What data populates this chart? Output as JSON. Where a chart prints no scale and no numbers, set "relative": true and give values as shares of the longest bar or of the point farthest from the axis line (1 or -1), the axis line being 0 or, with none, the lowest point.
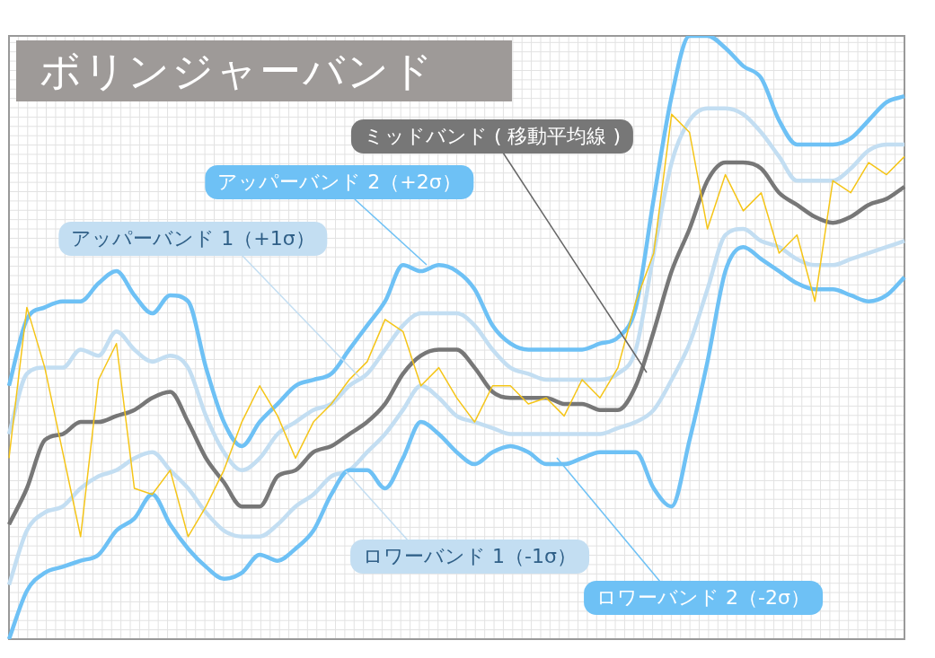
{
  "chart_data": {
    "type": "line",
    "title": "ボリンジャーバンド",
    "relative": true,
    "grid": true,
    "legend": false,
    "marker": "none",
    "categories": [
      null,
      null,
      null,
      null,
      null,
      null,
      null,
      null,
      null,
      null,
      null,
      null,
      null,
      null,
      null,
      null,
      null,
      null,
      null,
      null,
      null,
      null,
      null,
      null,
      null,
      null,
      null,
      null,
      null,
      null,
      null,
      null,
      null,
      null,
      null,
      null,
      null,
      null,
      null,
      null,
      null,
      null,
      null,
      null,
      null,
      null,
      null,
      null,
      null,
      null,
      null
    ],
    "series": [
      {
        "name": "アッパーバンド 1（+1σ）",
        "color": "#c3def2",
        "values": [
          0.34,
          0.44,
          0.45,
          0.45,
          0.48,
          0.47,
          0.51,
          0.48,
          0.46,
          0.47,
          0.45,
          0.37,
          0.31,
          0.28,
          0.3,
          0.34,
          0.36,
          0.38,
          0.39,
          0.42,
          0.44,
          0.48,
          0.52,
          0.54,
          0.54,
          0.54,
          0.52,
          0.48,
          0.45,
          0.44,
          0.43,
          0.43,
          0.43,
          0.43,
          0.44,
          0.48,
          0.64,
          0.79,
          0.86,
          0.88,
          0.88,
          0.87,
          0.84,
          0.8,
          0.76,
          0.76,
          0.76,
          0.78,
          0.81,
          0.82,
          0.82
        ]
      },
      {
        "name": "ロワーバンド 1（-1σ）",
        "color": "#c3def2",
        "values": [
          0.09,
          0.18,
          0.21,
          0.22,
          0.25,
          0.27,
          0.28,
          0.3,
          0.31,
          0.28,
          0.25,
          0.21,
          0.18,
          0.17,
          0.17,
          0.19,
          0.22,
          0.24,
          0.27,
          0.28,
          0.31,
          0.34,
          0.38,
          0.42,
          0.4,
          0.37,
          0.36,
          0.35,
          0.34,
          0.34,
          0.34,
          0.34,
          0.34,
          0.34,
          0.35,
          0.36,
          0.38,
          0.43,
          0.49,
          0.58,
          0.67,
          0.68,
          0.66,
          0.65,
          0.63,
          0.62,
          0.62,
          0.63,
          0.64,
          0.65,
          0.66
        ]
      },
      {
        "color": "#f5c518",
        "values": [
          0.3,
          0.55,
          0.45,
          0.31,
          0.17,
          0.43,
          0.49,
          0.25,
          0.24,
          0.28,
          0.17,
          0.22,
          0.28,
          0.36,
          0.42,
          0.37,
          0.3,
          0.36,
          0.39,
          0.43,
          0.46,
          0.53,
          0.51,
          0.42,
          0.45,
          0.4,
          0.36,
          0.42,
          0.42,
          0.39,
          0.4,
          0.37,
          0.43,
          0.4,
          0.45,
          0.56,
          0.64,
          0.87,
          0.84,
          0.68,
          0.77,
          0.71,
          0.74,
          0.64,
          0.67,
          0.56,
          0.76,
          0.74,
          0.79,
          0.77,
          0.8
        ]
      },
      {
        "name": "ミッドバンド ( 移動平均線 )",
        "color": "#777777",
        "values": [
          0.19,
          0.25,
          0.33,
          0.34,
          0.36,
          0.36,
          0.37,
          0.38,
          0.4,
          0.41,
          0.36,
          0.3,
          0.26,
          0.22,
          0.22,
          0.27,
          0.28,
          0.31,
          0.32,
          0.34,
          0.36,
          0.39,
          0.44,
          0.47,
          0.48,
          0.48,
          0.45,
          0.41,
          0.4,
          0.4,
          0.4,
          0.39,
          0.39,
          0.38,
          0.38,
          0.42,
          0.51,
          0.61,
          0.68,
          0.76,
          0.79,
          0.79,
          0.78,
          0.74,
          0.72,
          0.7,
          0.69,
          0.7,
          0.72,
          0.73,
          0.75
        ]
      },
      {
        "name": "アッパーバンド 2（+2σ）",
        "color": "#6ec1f5",
        "values": [
          0.42,
          0.53,
          0.55,
          0.56,
          0.56,
          0.59,
          0.61,
          0.57,
          0.54,
          0.57,
          0.56,
          0.45,
          0.36,
          0.32,
          0.36,
          0.39,
          0.42,
          0.43,
          0.44,
          0.48,
          0.52,
          0.56,
          0.62,
          0.61,
          0.62,
          0.61,
          0.58,
          0.52,
          0.49,
          0.48,
          0.48,
          0.48,
          0.48,
          0.49,
          0.5,
          0.55,
          0.73,
          0.9,
          1,
          1,
          0.98,
          0.95,
          0.93,
          0.86,
          0.82,
          0.82,
          0.82,
          0.83,
          0.86,
          0.89,
          0.9
        ]
      },
      {
        "name": "ロワーバンド 2（-2σ）",
        "color": "#6ec1f5",
        "values": [
          0,
          0.08,
          0.11,
          0.12,
          0.13,
          0.14,
          0.18,
          0.2,
          0.24,
          0.19,
          0.15,
          0.12,
          0.1,
          0.11,
          0.14,
          0.13,
          0.15,
          0.18,
          0.24,
          0.28,
          0.28,
          0.25,
          0.3,
          0.36,
          0.34,
          0.31,
          0.29,
          0.31,
          0.32,
          0.31,
          0.29,
          0.29,
          0.3,
          0.31,
          0.31,
          0.31,
          0.25,
          0.22,
          0.33,
          0.46,
          0.61,
          0.65,
          0.63,
          0.61,
          0.59,
          0.58,
          0.58,
          0.57,
          0.56,
          0.57,
          0.6
        ]
      }
    ]
  }
}
